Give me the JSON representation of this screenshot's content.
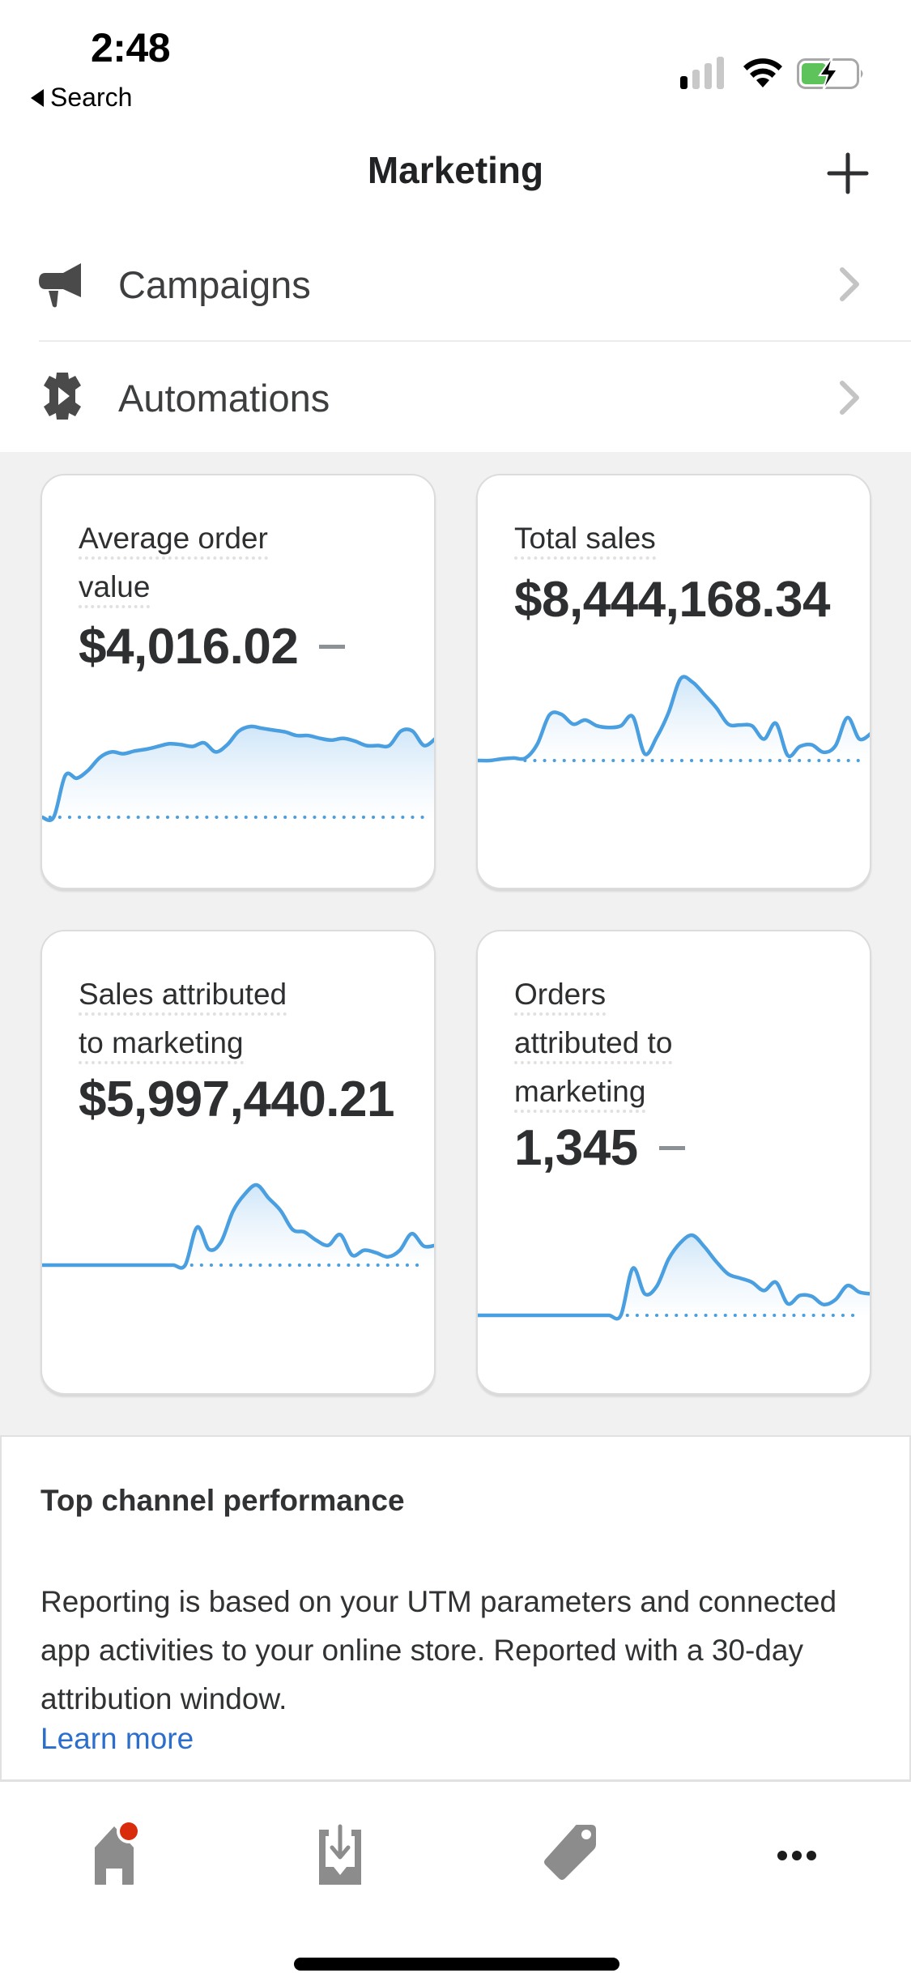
{
  "status_bar": {
    "time": "2:48",
    "back_label": "Search",
    "signal_bars_active": 1,
    "signal_bars_total": 4,
    "battery_level": 0.45,
    "battery_charging": true,
    "icons": [
      "signal-icon",
      "wifi-icon",
      "battery-charging-icon"
    ]
  },
  "nav": {
    "title": "Marketing",
    "add_icon": "plus-icon"
  },
  "list": [
    {
      "label": "Campaigns",
      "icon": "megaphone-icon"
    },
    {
      "label": "Automations",
      "icon": "gear-play-icon"
    }
  ],
  "cards": [
    {
      "label_lines": [
        "Average order",
        "value"
      ],
      "value": "$4,016.02",
      "trend": "neutral-dash",
      "baseline_start": 0.02,
      "values": [
        0,
        0,
        0.46,
        0.43,
        0.52,
        0.66,
        0.72,
        0.7,
        0.73,
        0.75,
        0.78,
        0.81,
        0.8,
        0.78,
        0.82,
        0.72,
        0.8,
        0.95,
        1.0,
        0.98,
        0.96,
        0.94,
        0.9,
        0.9,
        0.87,
        0.85,
        0.87,
        0.84,
        0.79,
        0.79,
        0.79,
        0.95,
        0.95,
        0.79,
        0.87
      ]
    },
    {
      "label_lines": [
        "Total sales"
      ],
      "value": "$8,444,168.34",
      "trend": "none",
      "baseline_start": 0.12,
      "values": [
        0,
        0,
        0.02,
        0.03,
        0.03,
        0.2,
        0.55,
        0.56,
        0.44,
        0.49,
        0.42,
        0.4,
        0.42,
        0.53,
        0.08,
        0.28,
        0.58,
        0.99,
        0.95,
        0.8,
        0.64,
        0.44,
        0.43,
        0.42,
        0.26,
        0.45,
        0.06,
        0.17,
        0.19,
        0.1,
        0.18,
        0.52,
        0.26,
        0.33
      ]
    },
    {
      "label_lines": [
        "Sales attributed",
        "to marketing"
      ],
      "value": "$5,997,440.21",
      "trend": "none",
      "baseline_start": 0.38,
      "values": [
        0,
        0,
        0,
        0,
        0,
        0,
        0,
        0,
        0,
        0,
        0,
        0,
        0,
        0.46,
        0.19,
        0.28,
        0.65,
        0.86,
        0.97,
        0.81,
        0.66,
        0.43,
        0.4,
        0.3,
        0.24,
        0.37,
        0.12,
        0.18,
        0.15,
        0.1,
        0.18,
        0.38,
        0.23,
        0.24
      ]
    },
    {
      "label_lines": [
        "Orders",
        "attributed to",
        "marketing"
      ],
      "value": "1,345",
      "trend": "neutral-dash",
      "baseline_start": 0.38,
      "values": [
        0,
        0,
        0,
        0,
        0,
        0,
        0,
        0,
        0,
        0,
        0,
        0,
        0,
        0.57,
        0.26,
        0.35,
        0.68,
        0.88,
        0.97,
        0.83,
        0.65,
        0.5,
        0.45,
        0.4,
        0.3,
        0.4,
        0.14,
        0.24,
        0.23,
        0.13,
        0.19,
        0.36,
        0.28,
        0.26
      ]
    }
  ],
  "info": {
    "title": "Top channel performance",
    "body": "Reporting is based on your UTM parameters and connected app activities to your online store. Reported with a 30-day attribution window.",
    "link": "Learn more"
  },
  "tabbar": {
    "items": [
      {
        "name": "home",
        "icon": "home-icon",
        "has_badge": true
      },
      {
        "name": "orders",
        "icon": "orders-inbox-icon",
        "has_badge": false
      },
      {
        "name": "products",
        "icon": "tag-icon",
        "has_badge": false
      },
      {
        "name": "more",
        "icon": "more-dots-icon",
        "has_badge": false
      }
    ]
  },
  "colors": {
    "chart_line": "#4a9fe0",
    "chart_fill_top": "#cfe6f8",
    "link": "#2c6ecb",
    "badge": "#d82c0d",
    "battery_fill": "#5ec35b"
  }
}
